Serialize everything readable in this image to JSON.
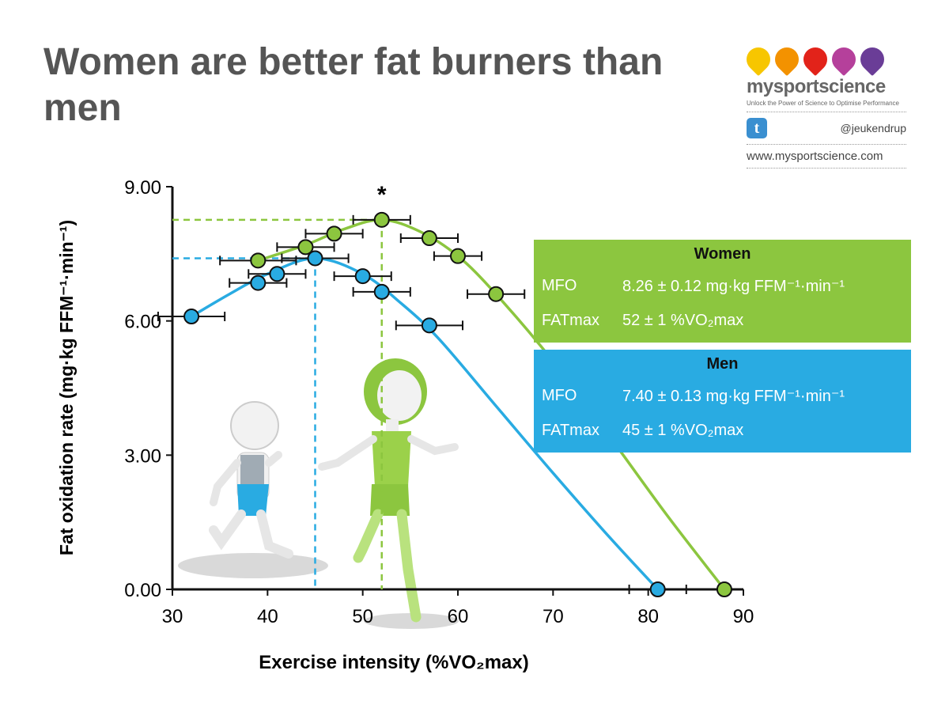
{
  "title": "Women are better fat burners than men",
  "brand": {
    "name": "mysportscience",
    "tagline": "Unlock the Power of Science to Optimise Performance",
    "twitter_icon_letter": "t",
    "twitter": "@jeukendrup",
    "website": "www.mysportscience.com",
    "dot_colors": [
      "#f7c600",
      "#f39200",
      "#e2231a",
      "#b5409b",
      "#6a3d97"
    ]
  },
  "chart_data": {
    "type": "line",
    "xlabel": "Exercise intensity (%VO₂max)",
    "ylabel": "Fat oxidation rate (mg·kg FFM⁻¹·min⁻¹)",
    "xlim": [
      30,
      90
    ],
    "ylim": [
      0,
      9
    ],
    "xticks": [
      30,
      40,
      50,
      60,
      70,
      80,
      90
    ],
    "yticks": [
      "0.00",
      "3.00",
      "6.00",
      "9.00"
    ],
    "significance_marker": "*",
    "significance_x": 52,
    "series": [
      {
        "name": "Women",
        "color": "#8cc63f",
        "points": [
          [
            39,
            7.35
          ],
          [
            44,
            7.65
          ],
          [
            47,
            7.95
          ],
          [
            52,
            8.26
          ],
          [
            57,
            7.85
          ],
          [
            60,
            7.45
          ],
          [
            64,
            6.6
          ],
          [
            88,
            0.0
          ]
        ],
        "xerr": [
          4,
          3,
          3,
          3,
          3,
          2.5,
          3,
          0
        ],
        "curve": [
          [
            39,
            7.35
          ],
          [
            44,
            7.7
          ],
          [
            48,
            8.05
          ],
          [
            52,
            8.26
          ],
          [
            56,
            8.0
          ],
          [
            60,
            7.45
          ],
          [
            64,
            6.6
          ],
          [
            70,
            5.1
          ],
          [
            76,
            3.4
          ],
          [
            82,
            1.65
          ],
          [
            88,
            0.0
          ]
        ],
        "mfo": 8.26,
        "fatmax": 52
      },
      {
        "name": "Men",
        "color": "#29abe2",
        "points": [
          [
            32,
            6.1
          ],
          [
            39,
            6.85
          ],
          [
            41,
            7.05
          ],
          [
            45,
            7.4
          ],
          [
            50,
            7.0
          ],
          [
            52,
            6.65
          ],
          [
            57,
            5.9
          ],
          [
            81,
            0.0
          ]
        ],
        "xerr": [
          3.5,
          3,
          3,
          3.5,
          3,
          3,
          3.5,
          3
        ],
        "curve": [
          [
            32,
            6.1
          ],
          [
            36,
            6.6
          ],
          [
            40,
            7.05
          ],
          [
            45,
            7.4
          ],
          [
            50,
            7.05
          ],
          [
            54,
            6.4
          ],
          [
            58,
            5.6
          ],
          [
            64,
            4.1
          ],
          [
            70,
            2.6
          ],
          [
            76,
            1.15
          ],
          [
            81,
            0.0
          ]
        ],
        "mfo": 7.4,
        "fatmax": 45
      }
    ]
  },
  "legend": {
    "women": {
      "header": "Women",
      "mfo_label": "MFO",
      "mfo_value": "8.26 ± 0.12 mg·kg FFM⁻¹·min⁻¹",
      "fatmax_label": "FATmax",
      "fatmax_value": "52 ± 1 %VO₂max"
    },
    "men": {
      "header": "Men",
      "mfo_label": "MFO",
      "mfo_value": "7.40 ± 0.13 mg·kg FFM⁻¹·min⁻¹",
      "fatmax_label": "FATmax",
      "fatmax_value": "45 ± 1 %VO₂max"
    }
  }
}
